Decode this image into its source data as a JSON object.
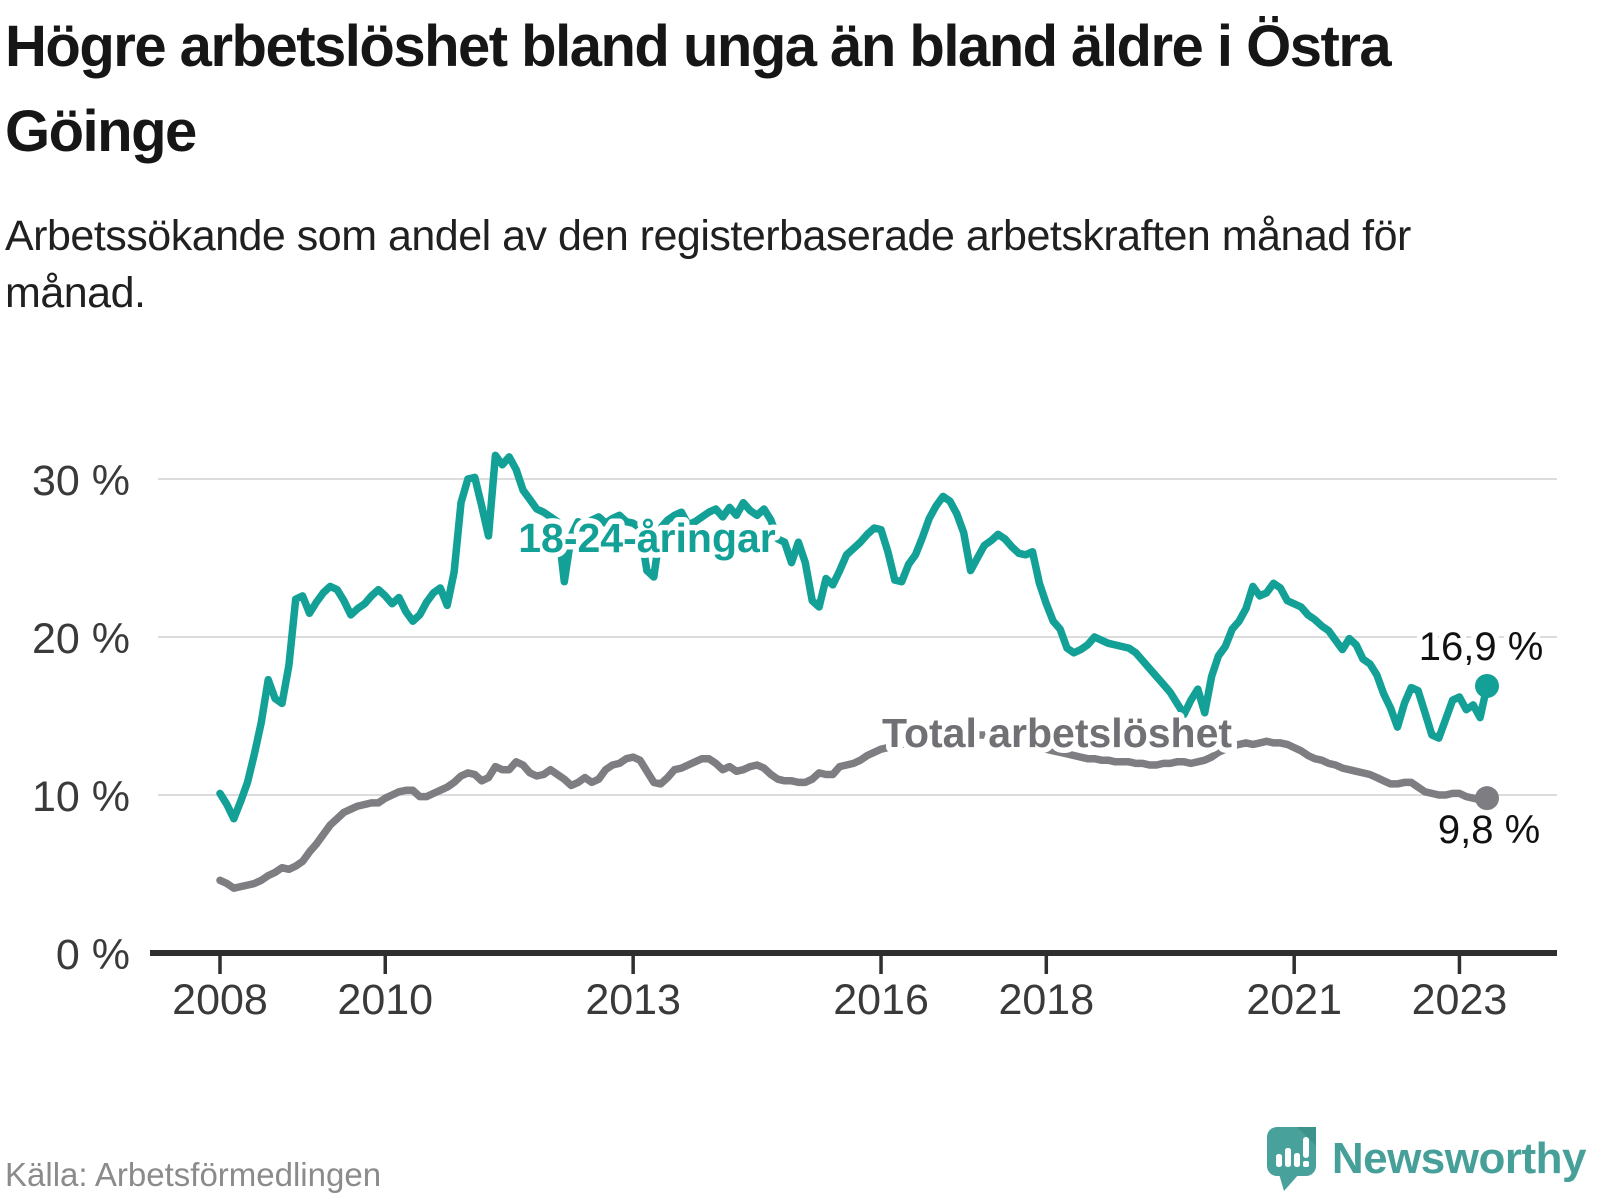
{
  "header": {
    "title": "Högre arbetslöshet bland unga än bland äldre i Östra Göinge",
    "subtitle": "Arbetssökande som andel av den registerbaserade arbetskraften månad för månad."
  },
  "chart_data": {
    "type": "line",
    "title": "Högre arbetslöshet bland unga än bland äldre i Östra Göinge",
    "unit": "%",
    "frequency": "monthly",
    "x_start": {
      "year": 2008,
      "month": 1
    },
    "x_end": {
      "year": 2023,
      "month": 5
    },
    "ylim": [
      0,
      33
    ],
    "grid": "horizontal",
    "legend_position": "inline",
    "y_ticks": [
      {
        "label": "0 %",
        "value": 0
      },
      {
        "label": "10 %",
        "value": 10
      },
      {
        "label": "20 %",
        "value": 20
      },
      {
        "label": "30 %",
        "value": 30
      }
    ],
    "x_ticks": [
      {
        "label": "2008",
        "year": 2008
      },
      {
        "label": "2010",
        "year": 2010
      },
      {
        "label": "2013",
        "year": 2013
      },
      {
        "label": "2016",
        "year": 2016
      },
      {
        "label": "2018",
        "year": 2018
      },
      {
        "label": "2021",
        "year": 2021
      },
      {
        "label": "2023",
        "year": 2023
      }
    ],
    "series": [
      {
        "id": "youth",
        "label": "18-24-åringar",
        "color": "#13A096",
        "end_value": 16.9,
        "end_label": "16,9 %",
        "values": [
          10.1,
          9.4,
          8.5,
          9.6,
          10.8,
          12.6,
          14.6,
          17.3,
          16.1,
          15.8,
          18.2,
          22.4,
          22.6,
          21.5,
          22.2,
          22.8,
          23.2,
          23.0,
          22.3,
          21.4,
          21.8,
          22.1,
          22.6,
          23.0,
          22.6,
          22.1,
          22.5,
          21.6,
          21.0,
          21.4,
          22.2,
          22.8,
          23.1,
          22.0,
          24.1,
          28.5,
          30.0,
          30.1,
          28.3,
          26.4,
          31.5,
          30.9,
          31.4,
          30.6,
          29.3,
          28.7,
          28.1,
          27.9,
          27.6,
          27.3,
          23.5,
          26.4,
          27.3,
          27.0,
          27.4,
          27.6,
          27.2,
          27.5,
          27.7,
          27.3,
          27.2,
          26.9,
          24.2,
          23.8,
          26.9,
          27.4,
          27.7,
          27.9,
          27.1,
          27.3,
          27.6,
          27.9,
          28.1,
          27.6,
          28.2,
          27.7,
          28.5,
          28.0,
          27.7,
          28.1,
          27.4,
          26.2,
          26.0,
          24.7,
          26.0,
          24.7,
          22.3,
          21.9,
          23.7,
          23.3,
          24.2,
          25.2,
          25.6,
          26.0,
          26.5,
          26.9,
          26.8,
          25.4,
          23.6,
          23.5,
          24.6,
          25.2,
          26.3,
          27.5,
          28.3,
          28.9,
          28.6,
          27.8,
          26.6,
          24.2,
          25.0,
          25.8,
          26.1,
          26.5,
          26.2,
          25.7,
          25.3,
          25.2,
          25.4,
          23.4,
          22.1,
          21.0,
          20.5,
          19.3,
          19.0,
          19.2,
          19.5,
          20.0,
          19.8,
          19.6,
          19.5,
          19.4,
          19.3,
          19.0,
          18.5,
          18.0,
          17.5,
          17.0,
          16.5,
          15.8,
          15.1,
          16.0,
          16.7,
          15.2,
          17.5,
          18.8,
          19.4,
          20.5,
          21.0,
          21.8,
          23.2,
          22.6,
          22.8,
          23.4,
          23.1,
          22.3,
          22.1,
          21.9,
          21.4,
          21.1,
          20.7,
          20.4,
          19.8,
          19.2,
          19.9,
          19.5,
          18.6,
          18.3,
          17.6,
          16.4,
          15.5,
          14.3,
          15.8,
          16.8,
          16.6,
          15.2,
          13.8,
          13.6,
          14.8,
          16.0,
          16.2,
          15.4,
          15.7,
          14.9,
          16.9
        ]
      },
      {
        "id": "total",
        "label": "Total arbetslöshet",
        "color": "#7D7D82",
        "end_value": 9.8,
        "end_label": "9,8 %",
        "values": [
          4.6,
          4.4,
          4.1,
          4.2,
          4.3,
          4.4,
          4.6,
          4.9,
          5.1,
          5.4,
          5.3,
          5.5,
          5.8,
          6.4,
          6.9,
          7.5,
          8.1,
          8.5,
          8.9,
          9.1,
          9.3,
          9.4,
          9.5,
          9.5,
          9.8,
          10.0,
          10.2,
          10.3,
          10.3,
          9.9,
          9.9,
          10.1,
          10.3,
          10.5,
          10.8,
          11.2,
          11.4,
          11.3,
          10.9,
          11.1,
          11.8,
          11.6,
          11.6,
          12.1,
          11.9,
          11.4,
          11.2,
          11.3,
          11.6,
          11.3,
          11.0,
          10.6,
          10.8,
          11.1,
          10.8,
          11.0,
          11.6,
          11.9,
          12.0,
          12.3,
          12.4,
          12.2,
          11.5,
          10.8,
          10.7,
          11.1,
          11.6,
          11.7,
          11.9,
          12.1,
          12.3,
          12.3,
          12.0,
          11.6,
          11.8,
          11.5,
          11.6,
          11.8,
          11.9,
          11.7,
          11.3,
          11.0,
          10.9,
          10.9,
          10.8,
          10.8,
          11.0,
          11.4,
          11.3,
          11.3,
          11.8,
          11.9,
          12.0,
          12.2,
          12.5,
          12.7,
          12.9,
          13.0,
          13.1,
          13.2,
          13.3,
          13.4,
          13.5,
          13.6,
          13.7,
          13.7,
          13.8,
          13.8,
          13.9,
          13.9,
          13.8,
          13.8,
          13.7,
          13.6,
          13.5,
          13.4,
          13.3,
          13.2,
          13.1,
          13.0,
          12.9,
          12.8,
          12.7,
          12.6,
          12.5,
          12.4,
          12.3,
          12.3,
          12.2,
          12.2,
          12.1,
          12.1,
          12.1,
          12.0,
          12.0,
          11.9,
          11.9,
          12.0,
          12.0,
          12.1,
          12.1,
          12.0,
          12.1,
          12.2,
          12.4,
          12.7,
          12.9,
          13.1,
          13.2,
          13.3,
          13.2,
          13.3,
          13.4,
          13.3,
          13.3,
          13.2,
          13.0,
          12.8,
          12.5,
          12.3,
          12.2,
          12.0,
          11.9,
          11.7,
          11.6,
          11.5,
          11.4,
          11.3,
          11.1,
          10.9,
          10.7,
          10.7,
          10.8,
          10.8,
          10.5,
          10.2,
          10.1,
          10.0,
          10.0,
          10.1,
          10.1,
          9.9,
          9.8,
          9.7,
          9.8
        ]
      }
    ]
  },
  "footer": {
    "source": "Källa: Arbetsförmedlingen",
    "brand": "Newsworthy"
  },
  "colors": {
    "accent_teal": "#13A096",
    "line_gray": "#7D7D82",
    "logo_teal": "#48A29B",
    "logo_fold": "#3C938C",
    "gridline": "#DCDCDC",
    "axis": "#2F2F2F",
    "text_dark": "#161616",
    "source_gray": "#8B8B8B"
  }
}
